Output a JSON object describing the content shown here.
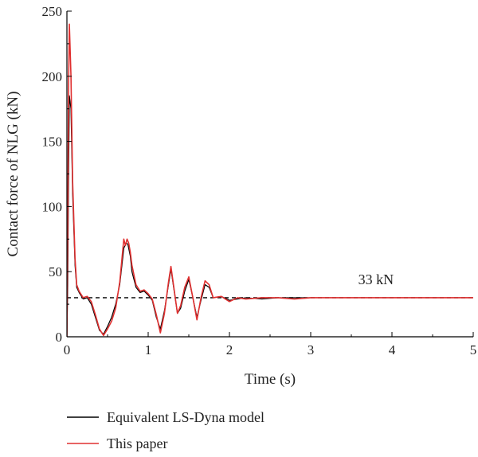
{
  "chart_data": {
    "type": "line",
    "xlabel": "Time (s)",
    "ylabel": "Contact force of NLG (kN)",
    "xlim": [
      0,
      5
    ],
    "ylim": [
      0,
      250
    ],
    "xticks": [
      0,
      1,
      2,
      3,
      4,
      5
    ],
    "yticks": [
      0,
      50,
      100,
      150,
      200,
      250
    ],
    "grid": false,
    "legend_position": "bottom",
    "annotation": {
      "text": "33 kN",
      "x": 3.8,
      "y": 33
    },
    "reference_line": {
      "y": 30,
      "style": "dashed",
      "color": "#000000"
    },
    "series": [
      {
        "name": "Equivalent LS-Dyna model",
        "color": "#000000",
        "x": [
          0,
          0.01,
          0.02,
          0.03,
          0.05,
          0.07,
          0.1,
          0.12,
          0.15,
          0.2,
          0.25,
          0.3,
          0.35,
          0.4,
          0.45,
          0.5,
          0.55,
          0.6,
          0.65,
          0.7,
          0.73,
          0.75,
          0.78,
          0.8,
          0.85,
          0.9,
          0.95,
          1.0,
          1.05,
          1.1,
          1.15,
          1.2,
          1.25,
          1.28,
          1.32,
          1.36,
          1.4,
          1.45,
          1.5,
          1.55,
          1.6,
          1.65,
          1.7,
          1.75,
          1.8,
          1.9,
          2.0,
          2.2,
          2.4,
          2.6,
          2.8,
          3.0,
          3.5,
          4.0,
          4.5,
          5.0
        ],
        "y": [
          0,
          40,
          120,
          185,
          175,
          110,
          55,
          38,
          34,
          29,
          30,
          25,
          15,
          5,
          2,
          8,
          15,
          25,
          40,
          68,
          72,
          71,
          62,
          50,
          38,
          34,
          35,
          32,
          28,
          15,
          6,
          20,
          40,
          52,
          35,
          18,
          22,
          35,
          44,
          30,
          15,
          28,
          40,
          38,
          30,
          31,
          28,
          30,
          29,
          30,
          30,
          30,
          30,
          30,
          30,
          30
        ]
      },
      {
        "name": "This paper",
        "color": "#e03030",
        "x": [
          0,
          0.01,
          0.02,
          0.03,
          0.05,
          0.07,
          0.1,
          0.12,
          0.15,
          0.2,
          0.25,
          0.3,
          0.35,
          0.4,
          0.45,
          0.5,
          0.55,
          0.6,
          0.65,
          0.7,
          0.72,
          0.74,
          0.76,
          0.78,
          0.8,
          0.85,
          0.9,
          0.95,
          1.0,
          1.05,
          1.1,
          1.15,
          1.2,
          1.25,
          1.28,
          1.32,
          1.36,
          1.4,
          1.45,
          1.5,
          1.55,
          1.6,
          1.65,
          1.7,
          1.75,
          1.8,
          1.9,
          2.0,
          2.1,
          2.2,
          2.4,
          2.6,
          2.8,
          3.0,
          3.5,
          4.0,
          4.5,
          5.0
        ],
        "y": [
          0,
          80,
          190,
          240,
          200,
          120,
          60,
          40,
          35,
          30,
          31,
          27,
          17,
          6,
          1,
          6,
          12,
          22,
          42,
          75,
          70,
          75,
          72,
          65,
          55,
          40,
          35,
          36,
          33,
          29,
          17,
          3,
          18,
          42,
          54,
          36,
          18,
          24,
          38,
          46,
          30,
          13,
          30,
          43,
          40,
          30,
          31,
          27,
          30,
          29,
          30,
          30,
          29,
          30,
          30,
          30,
          30,
          30
        ]
      }
    ]
  }
}
